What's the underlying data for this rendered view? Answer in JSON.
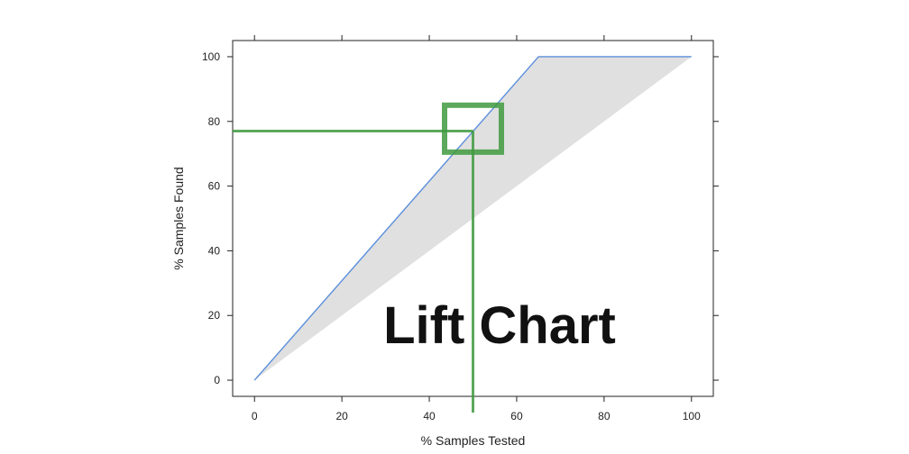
{
  "chart_data": {
    "type": "area",
    "title": "Lift Chart",
    "xlabel": "% Samples Tested",
    "ylabel": "% Samples Found",
    "xlim": [
      -5,
      105
    ],
    "ylim": [
      -5,
      105
    ],
    "x_ticks": [
      0,
      20,
      40,
      60,
      80,
      100
    ],
    "y_ticks": [
      0,
      20,
      40,
      60,
      80,
      100
    ],
    "grid": false,
    "shaded_region": {
      "upper": [
        [
          0,
          0
        ],
        [
          65,
          100
        ],
        [
          100,
          100
        ]
      ],
      "lower": [
        [
          0,
          0
        ],
        [
          100,
          100
        ]
      ],
      "color": "#e0e0e0"
    },
    "series": [
      {
        "color": "#5b8fdc",
        "x": [
          0,
          65,
          100
        ],
        "y": [
          0,
          100,
          100
        ]
      }
    ],
    "annotations": {
      "color": "#3f9a3f",
      "marker_point": [
        50,
        77
      ],
      "highlight_box": {
        "x": [
          43.5,
          56.5
        ],
        "y": [
          70.5,
          85
        ]
      }
    }
  }
}
